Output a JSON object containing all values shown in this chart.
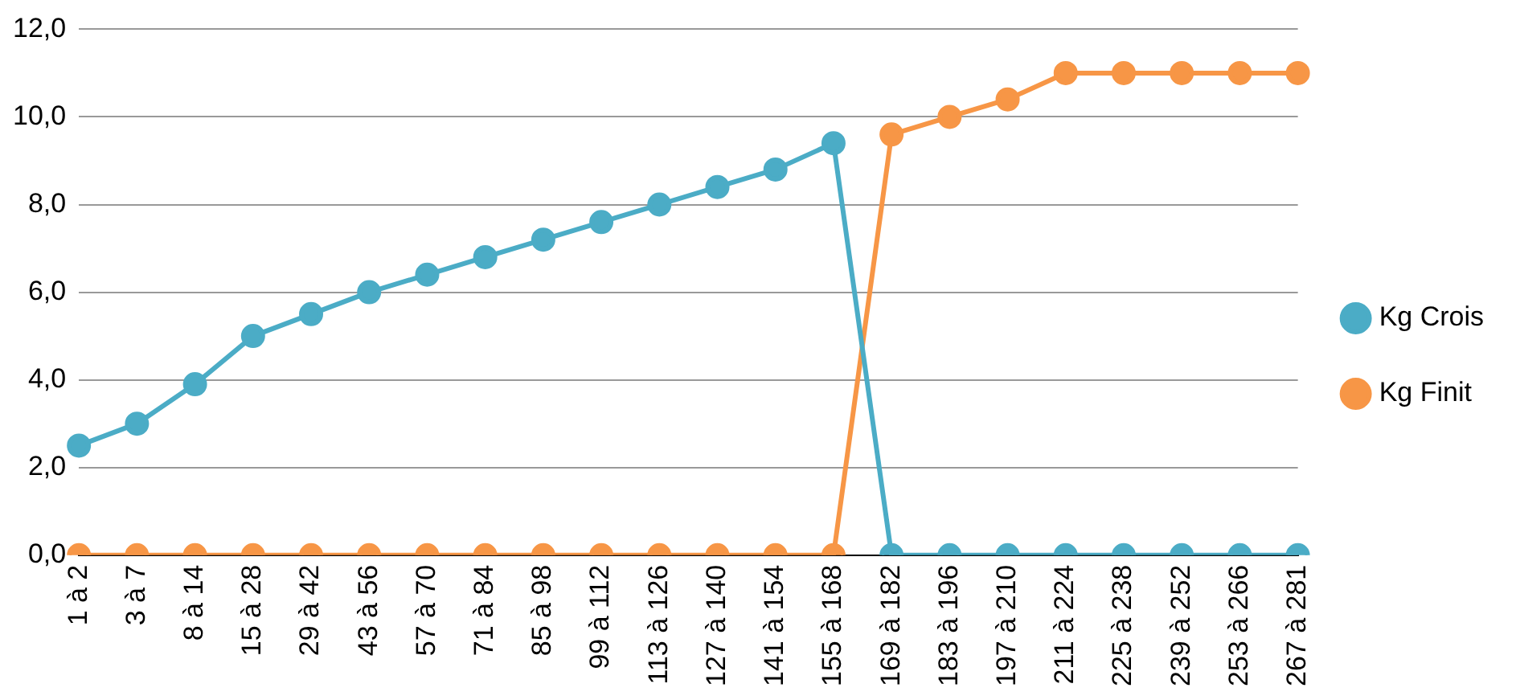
{
  "chart_data": {
    "type": "line",
    "categories": [
      "1 à 2",
      "3 à 7",
      "8 à 14",
      "15 à 28",
      "29 à 42",
      "43 à 56",
      "57 à 70",
      "71 à 84",
      "85 à 98",
      "99 à 112",
      "113 à 126",
      "127 à 140",
      "141 à 154",
      "155 à 168",
      "169 à 182",
      "183 à 196",
      "197 à 210",
      "211 à 224",
      "225 à 238",
      "239 à 252",
      "253 à 266",
      "267 à 281"
    ],
    "series": [
      {
        "name": "Kg Crois",
        "color": "#4bacc6",
        "values": [
          2.5,
          3.0,
          3.9,
          5.0,
          5.5,
          6.0,
          6.4,
          6.8,
          7.2,
          7.6,
          8.0,
          8.4,
          8.8,
          9.4,
          0,
          0,
          0,
          0,
          0,
          0,
          0,
          0
        ]
      },
      {
        "name": "Kg Finit",
        "color": "#f79646",
        "values": [
          0,
          0,
          0,
          0,
          0,
          0,
          0,
          0,
          0,
          0,
          0,
          0,
          0,
          0,
          9.6,
          10.0,
          10.4,
          11.0,
          11.0,
          11.0,
          11.0,
          11.0
        ]
      }
    ],
    "ylim": [
      0,
      12
    ],
    "yticks": [
      {
        "value": 0,
        "label": "0,0"
      },
      {
        "value": 2,
        "label": "2,0"
      },
      {
        "value": 4,
        "label": "4,0"
      },
      {
        "value": 6,
        "label": "6,0"
      },
      {
        "value": 8,
        "label": "8,0"
      },
      {
        "value": 10,
        "label": "10,0"
      },
      {
        "value": 12,
        "label": "12,0"
      }
    ],
    "grid": "y",
    "legend": "right",
    "marker": "circle",
    "line_style": "solid"
  }
}
